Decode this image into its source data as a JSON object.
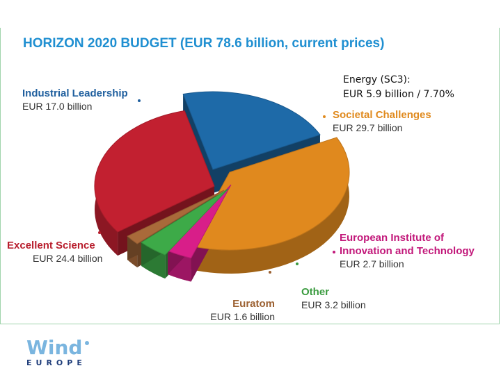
{
  "note": {
    "line1": "Energy (SC3):",
    "line2": "EUR 5.9 billion / 7.70%"
  },
  "logo": {
    "word1": "Wind",
    "word2": "EUROPE"
  },
  "chart_data": {
    "type": "pie",
    "title": "HORIZON 2020 BUDGET (EUR 78.6 billion, current prices)",
    "unit": "EUR billion",
    "slices": [
      {
        "name": "Industrial Leadership",
        "value_label": "EUR 17.0 billion",
        "value": 17.0,
        "color": "#1e6aa8",
        "label_color": "#1f5f9e"
      },
      {
        "name": "Societal Challenges",
        "value_label": "EUR 29.7 billion",
        "value": 29.7,
        "color": "#e0891e",
        "label_color": "#e08a1e"
      },
      {
        "name": "European Institute of Innovation and Technology",
        "name_lines": [
          "European Institute of",
          "Innovation and Technology"
        ],
        "value_label": "EUR 2.7 billion",
        "value": 2.7,
        "color": "#d81e89",
        "label_color": "#c2187a"
      },
      {
        "name": "Other",
        "value_label": "EUR 3.2 billion",
        "value": 3.2,
        "color": "#3daa48",
        "label_color": "#3a9b3f"
      },
      {
        "name": "Euratom",
        "value_label": "EUR 1.6 billion",
        "value": 1.6,
        "color": "#a96a3a",
        "label_color": "#9c6132"
      },
      {
        "name": "Excellent Science",
        "value_label": "EUR 24.4 billion",
        "value": 24.4,
        "color": "#c22030",
        "label_color": "#b81d2c"
      }
    ],
    "legend": "none"
  }
}
